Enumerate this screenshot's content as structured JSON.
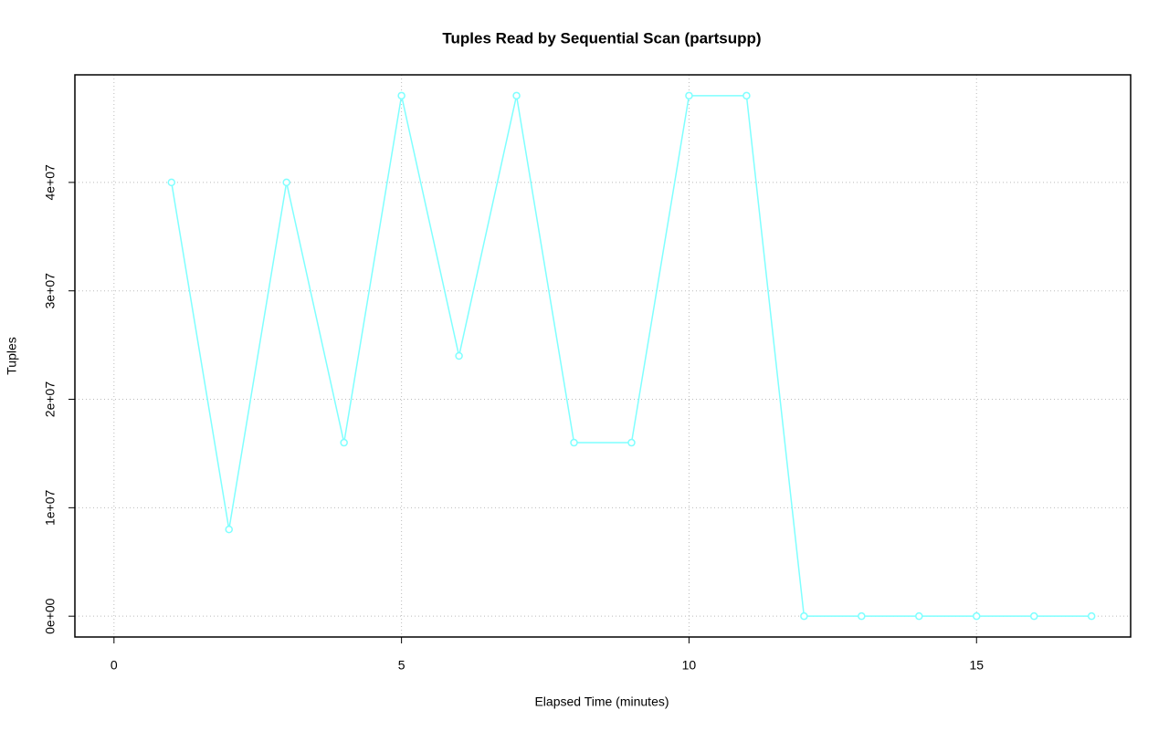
{
  "chart_data": {
    "type": "line",
    "title": "Tuples Read by Sequential Scan (partsupp)",
    "x_label": "Elapsed Time (minutes)",
    "y_label": "Tuples",
    "x": [
      1,
      2,
      3,
      4,
      5,
      6,
      7,
      8,
      9,
      10,
      11,
      12,
      13,
      14,
      15,
      16,
      17
    ],
    "values": [
      40000000,
      8000000,
      40000000,
      16000000,
      48000000,
      24000000,
      48000000,
      16000000,
      16000000,
      48000000,
      48000000,
      0,
      0,
      0,
      0,
      0,
      0
    ],
    "color": "#7fffff",
    "xlim": [
      -0.68,
      17.68
    ],
    "xticks": [
      0,
      5,
      10,
      15
    ],
    "ylim": [
      -1920000,
      49920000
    ],
    "yticks": [
      {
        "value": 0,
        "label": "0e+00"
      },
      {
        "value": 10000000,
        "label": "1e+07"
      },
      {
        "value": 20000000,
        "label": "2e+07"
      },
      {
        "value": 30000000,
        "label": "3e+07"
      },
      {
        "value": 40000000,
        "label": "4e+07"
      }
    ],
    "grid": true
  }
}
